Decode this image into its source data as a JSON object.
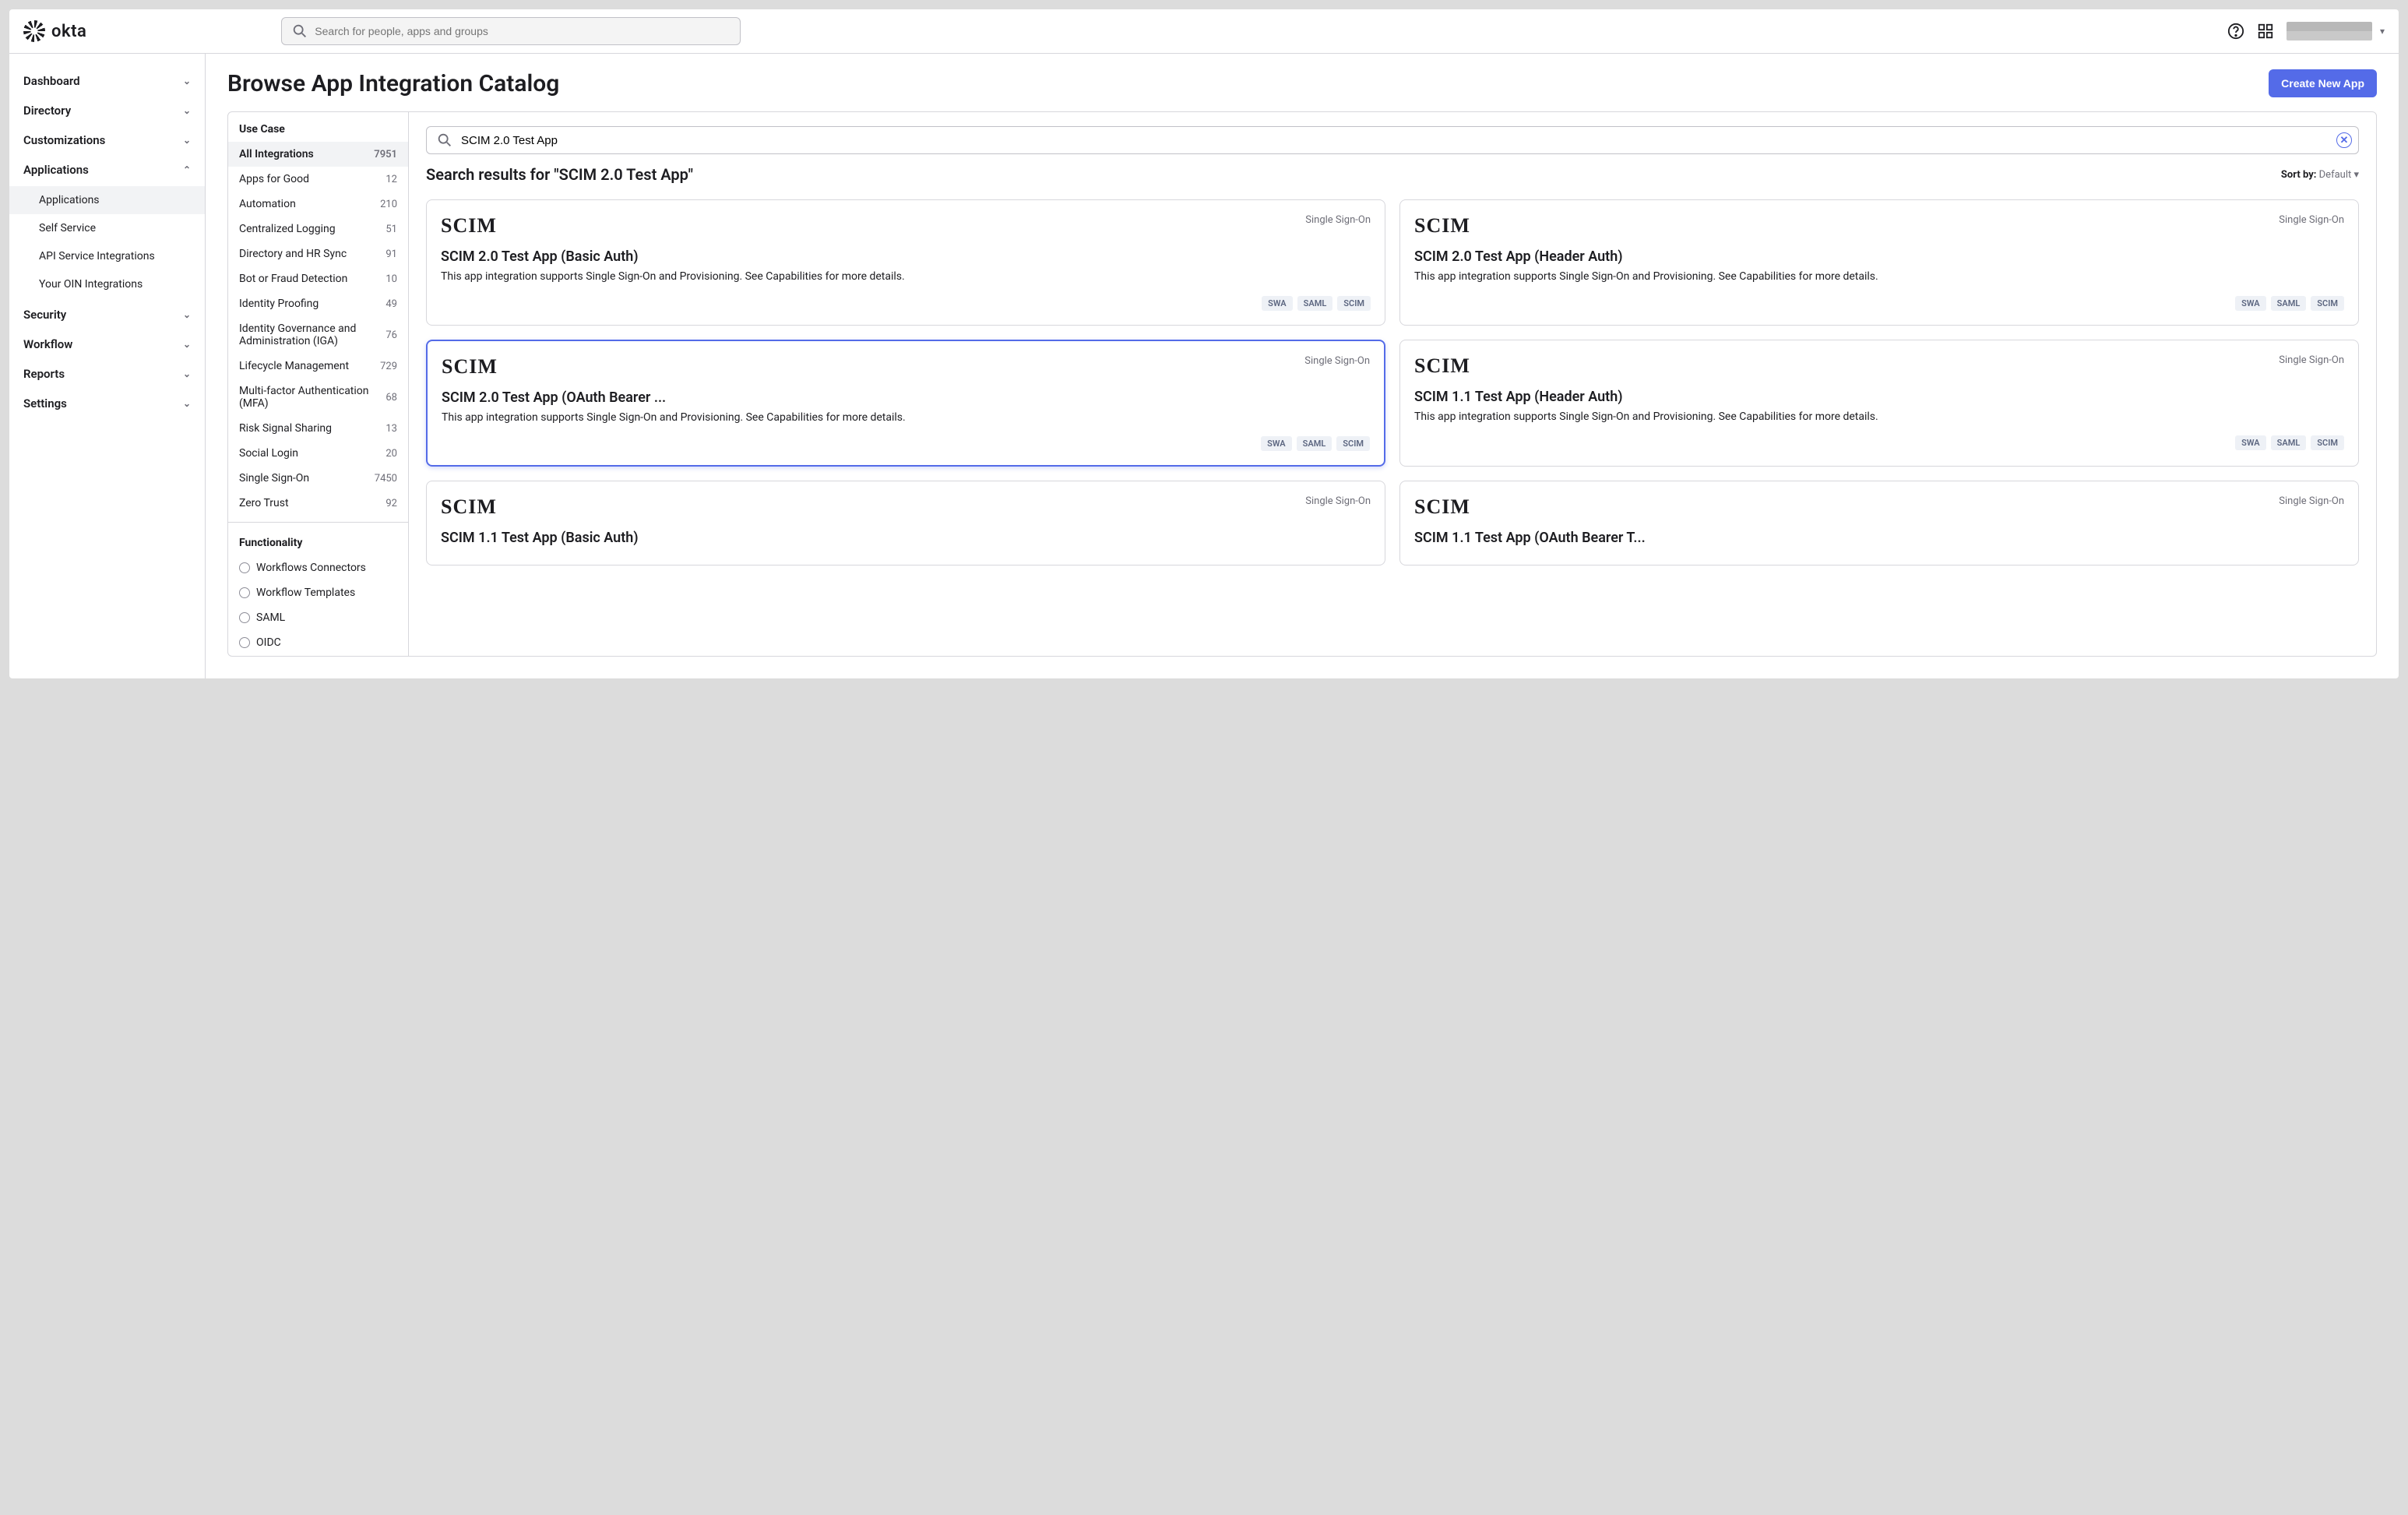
{
  "brand": "okta",
  "topSearch": {
    "placeholder": "Search for people, apps and groups"
  },
  "nav": {
    "items": [
      {
        "label": "Dashboard",
        "expanded": false
      },
      {
        "label": "Directory",
        "expanded": false
      },
      {
        "label": "Customizations",
        "expanded": false
      },
      {
        "label": "Applications",
        "expanded": true,
        "children": [
          {
            "label": "Applications",
            "active": true
          },
          {
            "label": "Self Service"
          },
          {
            "label": "API Service Integrations"
          },
          {
            "label": "Your OIN Integrations"
          }
        ]
      },
      {
        "label": "Security",
        "expanded": false
      },
      {
        "label": "Workflow",
        "expanded": false
      },
      {
        "label": "Reports",
        "expanded": false
      },
      {
        "label": "Settings",
        "expanded": false
      }
    ]
  },
  "page": {
    "title": "Browse App Integration Catalog",
    "createBtn": "Create New App"
  },
  "filters": {
    "useCaseHeading": "Use Case",
    "useCases": [
      {
        "label": "All Integrations",
        "count": "7951",
        "active": true
      },
      {
        "label": "Apps for Good",
        "count": "12"
      },
      {
        "label": "Automation",
        "count": "210"
      },
      {
        "label": "Centralized Logging",
        "count": "51"
      },
      {
        "label": "Directory and HR Sync",
        "count": "91"
      },
      {
        "label": "Bot or Fraud Detection",
        "count": "10"
      },
      {
        "label": "Identity Proofing",
        "count": "49"
      },
      {
        "label": "Identity Governance and Administration (IGA)",
        "count": "76"
      },
      {
        "label": "Lifecycle Management",
        "count": "729"
      },
      {
        "label": "Multi-factor Authentication (MFA)",
        "count": "68"
      },
      {
        "label": "Risk Signal Sharing",
        "count": "13"
      },
      {
        "label": "Social Login",
        "count": "20"
      },
      {
        "label": "Single Sign-On",
        "count": "7450"
      },
      {
        "label": "Zero Trust",
        "count": "92"
      }
    ],
    "functionalityHeading": "Functionality",
    "functionality": [
      {
        "label": "Workflows Connectors"
      },
      {
        "label": "Workflow Templates"
      },
      {
        "label": "SAML"
      },
      {
        "label": "OIDC"
      }
    ]
  },
  "results": {
    "searchValue": "SCIM 2.0 Test App",
    "heading": "Search results for \"SCIM 2.0 Test App\"",
    "sortLabel": "Sort by: ",
    "sortValue": "Default ▾",
    "desc": "This app integration supports Single Sign-On and Provisioning. See Capabilities for more details.",
    "badge": "Single Sign-On",
    "logoText": "SCIM",
    "tags": [
      "SWA",
      "SAML",
      "SCIM"
    ],
    "cards": [
      {
        "title": "SCIM 2.0 Test App (Basic Auth)"
      },
      {
        "title": "SCIM 2.0 Test App (Header Auth)"
      },
      {
        "title": "SCIM 2.0 Test App (OAuth Bearer ...",
        "highlight": true
      },
      {
        "title": "SCIM 1.1 Test App (Header Auth)"
      },
      {
        "title": "SCIM 1.1 Test App (Basic Auth)",
        "partial": true
      },
      {
        "title": "SCIM 1.1 Test App (OAuth Bearer T...",
        "partial": true
      }
    ]
  },
  "colors": {
    "accent": "#546be8",
    "border": "#d7d7dc",
    "muted": "#6e6e78",
    "panelBg": "#f2f3f5",
    "tagBg": "#eef1f6"
  }
}
